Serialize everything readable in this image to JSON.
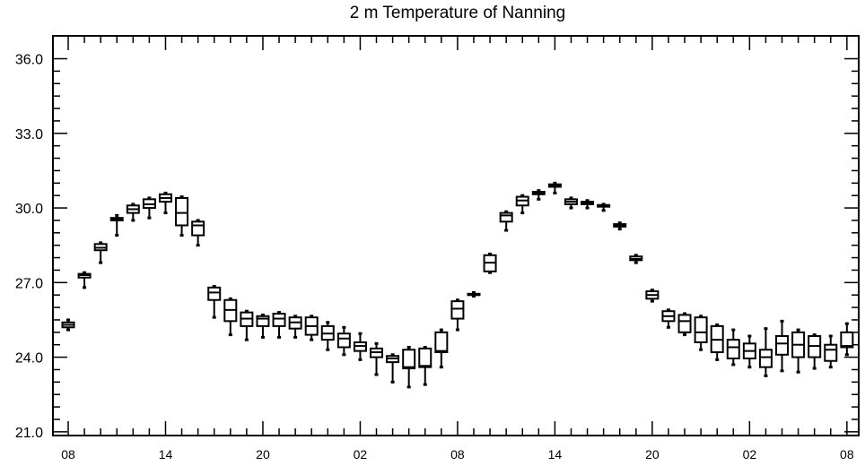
{
  "chart_data": {
    "type": "box",
    "title": "2 m Temperature of Nanning",
    "xlabel": "",
    "ylabel": "",
    "ylim": [
      21.0,
      36.0
    ],
    "y_ticks": [
      "21.0",
      "24.0",
      "27.0",
      "30.0",
      "33.0",
      "36.0"
    ],
    "y_minor_step": 0.5,
    "x_ticks": [
      {
        "index": 0,
        "label": "08"
      },
      {
        "index": 6,
        "label": "14"
      },
      {
        "index": 12,
        "label": "20"
      },
      {
        "index": 18,
        "label": "02"
      },
      {
        "index": 24,
        "label": "08"
      },
      {
        "index": 30,
        "label": "14"
      },
      {
        "index": 36,
        "label": "20"
      },
      {
        "index": 42,
        "label": "02"
      },
      {
        "index": 48,
        "label": "08"
      }
    ],
    "x_minor_every": 1,
    "boxes": [
      {
        "x": 0,
        "min": 25.1,
        "q1": 25.2,
        "median": 25.3,
        "q3": 25.4,
        "max": 25.5
      },
      {
        "x": 1,
        "min": 26.8,
        "q1": 27.2,
        "median": 27.3,
        "q3": 27.35,
        "max": 27.4
      },
      {
        "x": 2,
        "min": 27.8,
        "q1": 28.3,
        "median": 28.4,
        "q3": 28.55,
        "max": 28.6
      },
      {
        "x": 3,
        "min": 28.9,
        "q1": 29.5,
        "median": 29.55,
        "q3": 29.6,
        "max": 29.7
      },
      {
        "x": 4,
        "min": 29.5,
        "q1": 29.8,
        "median": 29.95,
        "q3": 30.1,
        "max": 30.15
      },
      {
        "x": 5,
        "min": 29.6,
        "q1": 30.0,
        "median": 30.15,
        "q3": 30.35,
        "max": 30.4
      },
      {
        "x": 6,
        "min": 29.8,
        "q1": 30.25,
        "median": 30.4,
        "q3": 30.55,
        "max": 30.6
      },
      {
        "x": 7,
        "min": 28.9,
        "q1": 29.3,
        "median": 29.8,
        "q3": 30.4,
        "max": 30.45
      },
      {
        "x": 8,
        "min": 28.5,
        "q1": 28.9,
        "median": 29.3,
        "q3": 29.45,
        "max": 29.5
      },
      {
        "x": 9,
        "min": 25.6,
        "q1": 26.3,
        "median": 26.6,
        "q3": 26.8,
        "max": 26.85
      },
      {
        "x": 10,
        "min": 24.9,
        "q1": 25.45,
        "median": 25.9,
        "q3": 26.3,
        "max": 26.35
      },
      {
        "x": 11,
        "min": 24.7,
        "q1": 25.25,
        "median": 25.55,
        "q3": 25.8,
        "max": 25.85
      },
      {
        "x": 12,
        "min": 24.8,
        "q1": 25.25,
        "median": 25.55,
        "q3": 25.65,
        "max": 25.7
      },
      {
        "x": 13,
        "min": 24.8,
        "q1": 25.25,
        "median": 25.55,
        "q3": 25.75,
        "max": 25.8
      },
      {
        "x": 14,
        "min": 24.8,
        "q1": 25.15,
        "median": 25.4,
        "q3": 25.6,
        "max": 25.65
      },
      {
        "x": 15,
        "min": 24.7,
        "q1": 24.9,
        "median": 25.25,
        "q3": 25.6,
        "max": 25.65
      },
      {
        "x": 16,
        "min": 24.3,
        "q1": 24.7,
        "median": 24.95,
        "q3": 25.25,
        "max": 25.4
      },
      {
        "x": 17,
        "min": 24.1,
        "q1": 24.4,
        "median": 24.75,
        "q3": 24.95,
        "max": 25.2
      },
      {
        "x": 18,
        "min": 23.9,
        "q1": 24.25,
        "median": 24.45,
        "q3": 24.6,
        "max": 24.95
      },
      {
        "x": 19,
        "min": 23.3,
        "q1": 24.0,
        "median": 24.2,
        "q3": 24.35,
        "max": 24.55
      },
      {
        "x": 20,
        "min": 23.0,
        "q1": 23.8,
        "median": 23.95,
        "q3": 24.05,
        "max": 24.1
      },
      {
        "x": 21,
        "min": 22.8,
        "q1": 23.55,
        "median": 23.6,
        "q3": 24.3,
        "max": 24.4
      },
      {
        "x": 22,
        "min": 22.9,
        "q1": 23.6,
        "median": 23.65,
        "q3": 24.35,
        "max": 24.4
      },
      {
        "x": 23,
        "min": 23.6,
        "q1": 24.2,
        "median": 24.25,
        "q3": 25.0,
        "max": 25.1
      },
      {
        "x": 24,
        "min": 25.1,
        "q1": 25.55,
        "median": 25.95,
        "q3": 26.25,
        "max": 26.3
      },
      {
        "x": 25,
        "min": 26.45,
        "q1": 26.5,
        "median": 26.52,
        "q3": 26.55,
        "max": 26.6
      },
      {
        "x": 26,
        "min": 27.4,
        "q1": 27.45,
        "median": 27.8,
        "q3": 28.1,
        "max": 28.15
      },
      {
        "x": 27,
        "min": 29.1,
        "q1": 29.45,
        "median": 29.7,
        "q3": 29.8,
        "max": 29.85
      },
      {
        "x": 28,
        "min": 29.8,
        "q1": 30.1,
        "median": 30.3,
        "q3": 30.45,
        "max": 30.5
      },
      {
        "x": 29,
        "min": 30.35,
        "q1": 30.55,
        "median": 30.6,
        "q3": 30.65,
        "max": 30.7
      },
      {
        "x": 30,
        "min": 30.6,
        "q1": 30.85,
        "median": 30.9,
        "q3": 30.95,
        "max": 31.0
      },
      {
        "x": 31,
        "min": 30.0,
        "q1": 30.15,
        "median": 30.25,
        "q3": 30.35,
        "max": 30.4
      },
      {
        "x": 32,
        "min": 30.0,
        "q1": 30.15,
        "median": 30.2,
        "q3": 30.25,
        "max": 30.3
      },
      {
        "x": 33,
        "min": 29.9,
        "q1": 30.05,
        "median": 30.08,
        "q3": 30.12,
        "max": 30.15
      },
      {
        "x": 34,
        "min": 29.15,
        "q1": 29.25,
        "median": 29.3,
        "q3": 29.35,
        "max": 29.4
      },
      {
        "x": 35,
        "min": 27.8,
        "q1": 27.9,
        "median": 27.95,
        "q3": 28.05,
        "max": 28.1
      },
      {
        "x": 36,
        "min": 26.25,
        "q1": 26.35,
        "median": 26.5,
        "q3": 26.65,
        "max": 26.7
      },
      {
        "x": 37,
        "min": 25.2,
        "q1": 25.45,
        "median": 25.65,
        "q3": 25.85,
        "max": 25.9
      },
      {
        "x": 38,
        "min": 24.9,
        "q1": 25.0,
        "median": 25.45,
        "q3": 25.7,
        "max": 25.75
      },
      {
        "x": 39,
        "min": 24.3,
        "q1": 24.6,
        "median": 25.0,
        "q3": 25.6,
        "max": 25.65
      },
      {
        "x": 40,
        "min": 23.9,
        "q1": 24.2,
        "median": 24.7,
        "q3": 25.25,
        "max": 25.3
      },
      {
        "x": 41,
        "min": 23.7,
        "q1": 23.95,
        "median": 24.4,
        "q3": 24.7,
        "max": 25.1
      },
      {
        "x": 42,
        "min": 23.6,
        "q1": 23.95,
        "median": 24.25,
        "q3": 24.55,
        "max": 24.85
      },
      {
        "x": 43,
        "min": 23.25,
        "q1": 23.6,
        "median": 24.0,
        "q3": 24.3,
        "max": 25.15
      },
      {
        "x": 44,
        "min": 23.45,
        "q1": 24.1,
        "median": 24.55,
        "q3": 24.85,
        "max": 25.45
      },
      {
        "x": 45,
        "min": 23.4,
        "q1": 24.0,
        "median": 24.5,
        "q3": 25.0,
        "max": 25.1
      },
      {
        "x": 46,
        "min": 23.55,
        "q1": 24.0,
        "median": 24.45,
        "q3": 24.85,
        "max": 24.9
      },
      {
        "x": 47,
        "min": 23.6,
        "q1": 23.85,
        "median": 24.3,
        "q3": 24.5,
        "max": 24.85
      },
      {
        "x": 48,
        "min": 24.1,
        "q1": 24.4,
        "median": 24.45,
        "q3": 25.0,
        "max": 25.35
      }
    ],
    "grid": false,
    "legend": "none",
    "colors": {
      "stroke": "#000000",
      "background": "#ffffff"
    }
  }
}
